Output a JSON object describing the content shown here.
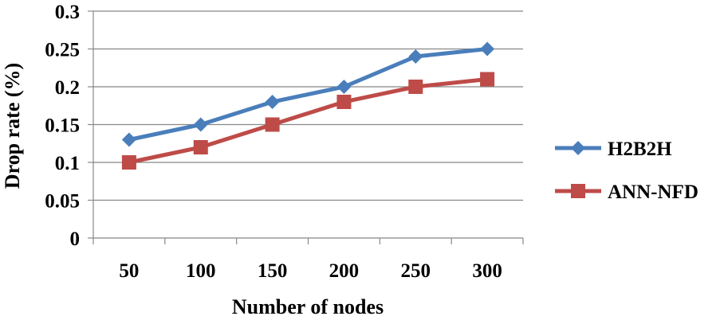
{
  "chart_data": {
    "type": "line",
    "title": "",
    "xlabel": "Number of nodes",
    "ylabel": "Drop rate (%)",
    "categories": [
      "50",
      "100",
      "150",
      "200",
      "250",
      "300"
    ],
    "ylim": [
      0,
      0.3
    ],
    "yticks": [
      "0",
      "0.05",
      "0.1",
      "0.15",
      "0.2",
      "0.25",
      "0.3"
    ],
    "grid": true,
    "legend_position": "right",
    "series": [
      {
        "name": "H2B2H",
        "values": [
          0.13,
          0.15,
          0.18,
          0.2,
          0.24,
          0.25
        ],
        "color": "#4a7ebb",
        "marker": "diamond"
      },
      {
        "name": "ANN-NFD",
        "values": [
          0.1,
          0.12,
          0.15,
          0.18,
          0.2,
          0.21
        ],
        "color": "#be4b48",
        "marker": "square"
      }
    ]
  }
}
